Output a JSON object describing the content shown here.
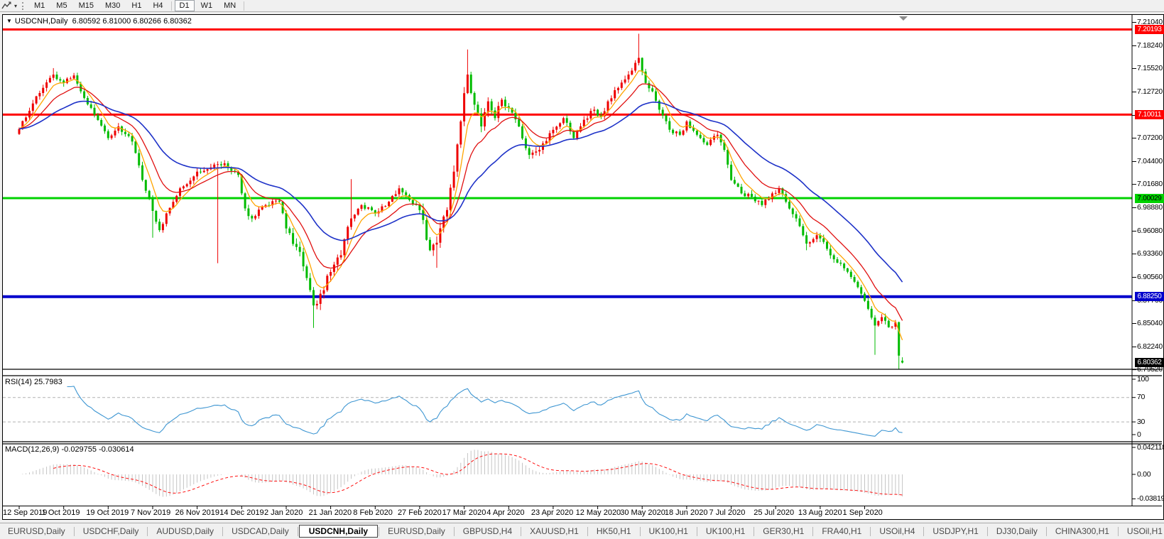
{
  "toolbar": {
    "tool_dropdown_glyph": "▾",
    "timeframes": [
      "M1",
      "M5",
      "M15",
      "M30",
      "H1",
      "H4",
      "D1",
      "W1",
      "MN"
    ],
    "active_timeframe": "D1"
  },
  "window": {
    "collapse_glyph": "▼",
    "symbol": "USDCNH,Daily",
    "ohlc_text": "6.80592 6.81000 6.80266 6.80362"
  },
  "indicator_headers": {
    "rsi_label": "RSI(14)",
    "rsi_value": "25.7983",
    "macd_label": "MACD(12,26,9)",
    "macd_values": "-0.029755 -0.030614"
  },
  "tabs": {
    "items": [
      "EURUSD,Daily",
      "USDCHF,Daily",
      "AUDUSD,Daily",
      "USDCAD,Daily",
      "USDCNH,Daily",
      "EURUSD,Daily",
      "GBPUSD,H4",
      "XAUUSD,H1",
      "HK50,H1",
      "UK100,H1",
      "UK100,H1",
      "GER30,H1",
      "FRA40,H1",
      "USOil,H4",
      "USDJPY,H1",
      "DJ30,Daily",
      "CHINA300,H1",
      "USOil,H1"
    ],
    "active_index": 4,
    "scroll_left_glyph": "◄",
    "scroll_right_glyph": "►"
  },
  "chart_data": {
    "type": "candlestick",
    "symbol": "USDCNH",
    "timeframe": "Daily",
    "color_convention": "red = up candle, green = down candle",
    "last_bar": {
      "open": 6.80592,
      "high": 6.81,
      "low": 6.80266,
      "close": 6.80362
    },
    "current_price": {
      "value": 6.80362,
      "label": "6.80362",
      "box_color": "#000000",
      "text_color": "#ffffff"
    },
    "y_axis": {
      "min": 6.7952,
      "max": 7.2104,
      "tick_step": 0.028,
      "ticks": [
        "7.21040",
        "7.18240",
        "7.15520",
        "7.12720",
        "7.09920",
        "7.07200",
        "7.04400",
        "7.01680",
        "6.98880",
        "6.96080",
        "6.93360",
        "6.90560",
        "6.87760",
        "6.85040",
        "6.82240",
        "6.79520"
      ]
    },
    "x_axis": {
      "bar_count": 259,
      "bars_per_label": 13,
      "labels": [
        "12 Sep 2019",
        "1 Oct 2019",
        "19 Oct 2019",
        "7 Nov 2019",
        "26 Nov 2019",
        "14 Dec 2019",
        "2 Jan 2020",
        "21 Jan 2020",
        "8 Feb 2020",
        "27 Feb 2020",
        "17 Mar 2020",
        "4 Apr 2020",
        "23 Apr 2020",
        "12 May 2020",
        "30 May 2020",
        "18 Jun 2020",
        "7 Jul 2020",
        "25 Jul 2020",
        "13 Aug 2020",
        "1 Sep 2020"
      ]
    },
    "horizontal_levels": [
      {
        "price": 7.20193,
        "label": "7.20193",
        "color": "#ff0000",
        "text_color": "#ffffff",
        "thickness": 3
      },
      {
        "price": 7.10011,
        "label": "7.10011",
        "color": "#ff0000",
        "text_color": "#ffffff",
        "thickness": 3
      },
      {
        "price": 7.00029,
        "label": "7.00029",
        "color": "#00d200",
        "text_color": "#000000",
        "thickness": 3
      },
      {
        "price": 6.8825,
        "label": "6.88250",
        "color": "#0000cc",
        "text_color": "#ffffff",
        "thickness": 4
      }
    ],
    "candle_colors": {
      "up": "#ee0000",
      "down": "#00bb00"
    },
    "close_anchors": [
      [
        0,
        7.083
      ],
      [
        5,
        7.122
      ],
      [
        10,
        7.148
      ],
      [
        13,
        7.138
      ],
      [
        16,
        7.147
      ],
      [
        18,
        7.128
      ],
      [
        22,
        7.1
      ],
      [
        26,
        7.072
      ],
      [
        29,
        7.086
      ],
      [
        33,
        7.068
      ],
      [
        36,
        7.022
      ],
      [
        39,
        6.985
      ],
      [
        41,
        6.962
      ],
      [
        43,
        6.982
      ],
      [
        47,
        7.012
      ],
      [
        52,
        7.032
      ],
      [
        56,
        7.037
      ],
      [
        60,
        7.042
      ],
      [
        64,
        7.028
      ],
      [
        66,
        6.988
      ],
      [
        68,
        6.976
      ],
      [
        72,
        6.992
      ],
      [
        76,
        6.996
      ],
      [
        78,
        6.964
      ],
      [
        82,
        6.936
      ],
      [
        86,
        6.872
      ],
      [
        88,
        6.886
      ],
      [
        91,
        6.912
      ],
      [
        94,
        6.932
      ],
      [
        97,
        6.976
      ],
      [
        100,
        6.992
      ],
      [
        104,
        6.982
      ],
      [
        108,
        6.996
      ],
      [
        111,
        7.012
      ],
      [
        114,
        6.998
      ],
      [
        117,
        6.986
      ],
      [
        120,
        6.938
      ],
      [
        122,
        6.947
      ],
      [
        125,
        6.986
      ],
      [
        127,
        7.032
      ],
      [
        129,
        7.092
      ],
      [
        131,
        7.148
      ],
      [
        133,
        7.112
      ],
      [
        135,
        7.086
      ],
      [
        137,
        7.116
      ],
      [
        139,
        7.096
      ],
      [
        141,
        7.118
      ],
      [
        143,
        7.108
      ],
      [
        146,
        7.086
      ],
      [
        149,
        7.052
      ],
      [
        152,
        7.058
      ],
      [
        156,
        7.082
      ],
      [
        159,
        7.096
      ],
      [
        162,
        7.072
      ],
      [
        165,
        7.094
      ],
      [
        168,
        7.106
      ],
      [
        170,
        7.098
      ],
      [
        172,
        7.116
      ],
      [
        175,
        7.132
      ],
      [
        178,
        7.148
      ],
      [
        180,
        7.162
      ],
      [
        181,
        7.168
      ],
      [
        183,
        7.138
      ],
      [
        185,
        7.128
      ],
      [
        187,
        7.106
      ],
      [
        190,
        7.082
      ],
      [
        193,
        7.076
      ],
      [
        195,
        7.092
      ],
      [
        198,
        7.076
      ],
      [
        201,
        7.064
      ],
      [
        204,
        7.076
      ],
      [
        206,
        7.058
      ],
      [
        208,
        7.022
      ],
      [
        211,
        7.006
      ],
      [
        214,
        7.002
      ],
      [
        217,
        6.992
      ],
      [
        220,
        7.006
      ],
      [
        222,
        7.012
      ],
      [
        224,
        6.996
      ],
      [
        227,
        6.976
      ],
      [
        230,
        6.946
      ],
      [
        233,
        6.956
      ],
      [
        235,
        6.948
      ],
      [
        237,
        6.932
      ],
      [
        240,
        6.922
      ],
      [
        243,
        6.906
      ],
      [
        246,
        6.886
      ],
      [
        248,
        6.868
      ],
      [
        250,
        6.848
      ],
      [
        252,
        6.858
      ],
      [
        254,
        6.846
      ],
      [
        256,
        6.852
      ],
      [
        257,
        6.812
      ],
      [
        258,
        6.80362
      ]
    ],
    "wick_lows": [
      [
        39,
        6.953
      ],
      [
        58,
        6.9225
      ],
      [
        86,
        6.8452
      ],
      [
        122,
        6.917
      ],
      [
        230,
        6.938
      ],
      [
        250,
        6.813
      ],
      [
        257,
        6.7952
      ]
    ],
    "wick_highs": [
      [
        10,
        7.1557
      ],
      [
        97,
        7.023
      ],
      [
        131,
        7.178
      ],
      [
        181,
        7.1968
      ]
    ],
    "moving_averages": [
      {
        "name": "fast",
        "period": 6,
        "color": "#ffa500"
      },
      {
        "name": "medium",
        "period": 14,
        "color": "#e01010"
      },
      {
        "name": "slow",
        "period": 34,
        "color": "#1e32c8"
      }
    ],
    "indicators": {
      "rsi": {
        "period": 14,
        "current": 25.7983,
        "axis_labels": [
          "100",
          "70",
          "30",
          "0"
        ],
        "guide_levels": [
          70,
          30
        ],
        "color": "#3e96d2"
      },
      "macd": {
        "fast": 12,
        "slow": 26,
        "signal": 9,
        "macd_current": -0.029755,
        "signal_current": -0.030614,
        "axis_labels": [
          "0.042118",
          "0.00",
          "-0.038198"
        ],
        "axis_values": [
          0.042118,
          0,
          -0.038198
        ],
        "histogram_color": "#c4c4c4",
        "signal_color": "#ff1010"
      }
    }
  }
}
